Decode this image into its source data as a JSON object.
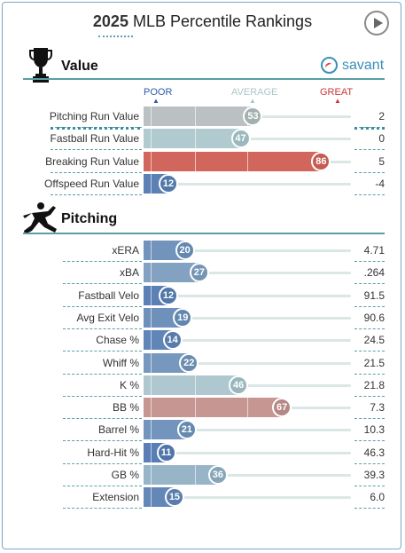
{
  "title": {
    "year": "2025",
    "rest": "MLB Percentile Rankings"
  },
  "sections": {
    "value": "Value",
    "pitching": "Pitching"
  },
  "brand": "savant",
  "scale": {
    "poor": "POOR",
    "average": "AVERAGE",
    "great": "GREAT"
  },
  "colors": {
    "poor": "#2f5ba8",
    "average": "#b8d0d2",
    "great": "#d8463a",
    "value_header_line": "#5a9fa4"
  },
  "value_rows": [
    {
      "label": "Pitching Run Value",
      "percentile": 53,
      "stat": "2"
    },
    {
      "label": "Fastball Run Value",
      "percentile": 47,
      "stat": "0"
    },
    {
      "label": "Breaking Run Value",
      "percentile": 86,
      "stat": "5"
    },
    {
      "label": "Offspeed Run Value",
      "percentile": 12,
      "stat": "-4"
    }
  ],
  "pitching_rows": [
    {
      "label": "xERA",
      "percentile": 20,
      "stat": "4.71"
    },
    {
      "label": "xBA",
      "percentile": 27,
      "stat": ".264"
    },
    {
      "label": "Fastball Velo",
      "percentile": 12,
      "stat": "91.5"
    },
    {
      "label": "Avg Exit Velo",
      "percentile": 19,
      "stat": "90.6"
    },
    {
      "label": "Chase %",
      "percentile": 14,
      "stat": "24.5"
    },
    {
      "label": "Whiff %",
      "percentile": 22,
      "stat": "21.5"
    },
    {
      "label": "K %",
      "percentile": 46,
      "stat": "21.8"
    },
    {
      "label": "BB %",
      "percentile": 67,
      "stat": "7.3"
    },
    {
      "label": "Barrel %",
      "percentile": 21,
      "stat": "10.3"
    },
    {
      "label": "Hard-Hit %",
      "percentile": 11,
      "stat": "46.3"
    },
    {
      "label": "GB %",
      "percentile": 36,
      "stat": "39.3"
    },
    {
      "label": "Extension",
      "percentile": 15,
      "stat": "6.0"
    }
  ]
}
